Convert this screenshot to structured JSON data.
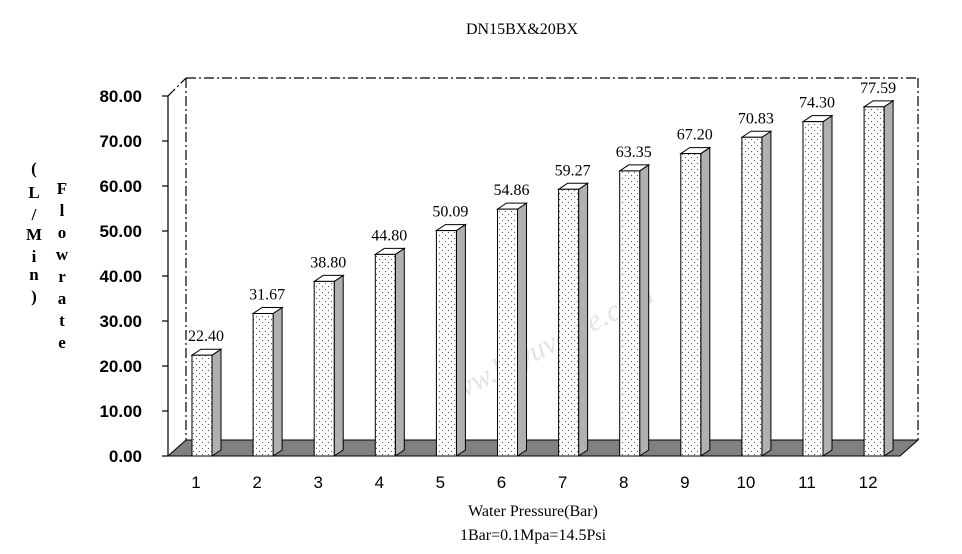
{
  "chart_data": {
    "type": "bar",
    "title": "DN15BX&20BX",
    "xlabel": "Water Pressure(Bar)",
    "xlabel_note": "1Bar=0.1Mpa=14.5Psi",
    "ylabel": "Flowrate",
    "ylabel_unit": "(L/Min)",
    "categories": [
      "1",
      "2",
      "3",
      "4",
      "5",
      "6",
      "7",
      "8",
      "9",
      "10",
      "11",
      "12"
    ],
    "values": [
      22.4,
      31.67,
      38.8,
      44.8,
      50.09,
      54.86,
      59.27,
      63.35,
      67.2,
      70.83,
      74.3,
      77.59
    ],
    "value_labels": [
      "22.40",
      "31.67",
      "38.80",
      "44.80",
      "50.09",
      "54.86",
      "59.27",
      "63.35",
      "67.20",
      "70.83",
      "74.30",
      "77.59"
    ],
    "yticks": [
      "0.00",
      "10.00",
      "20.00",
      "30.00",
      "40.00",
      "50.00",
      "60.00",
      "70.00",
      "80.00"
    ],
    "ylim": [
      0,
      80
    ],
    "grid": false,
    "legend": "none",
    "style": "3d-dotted-bars",
    "colors": {
      "bar_face": "#ffffff",
      "bar_side": "#b0b0b0",
      "floor": "#808080",
      "dots": "#555555"
    },
    "watermark": "www.keyuvalve.com"
  }
}
